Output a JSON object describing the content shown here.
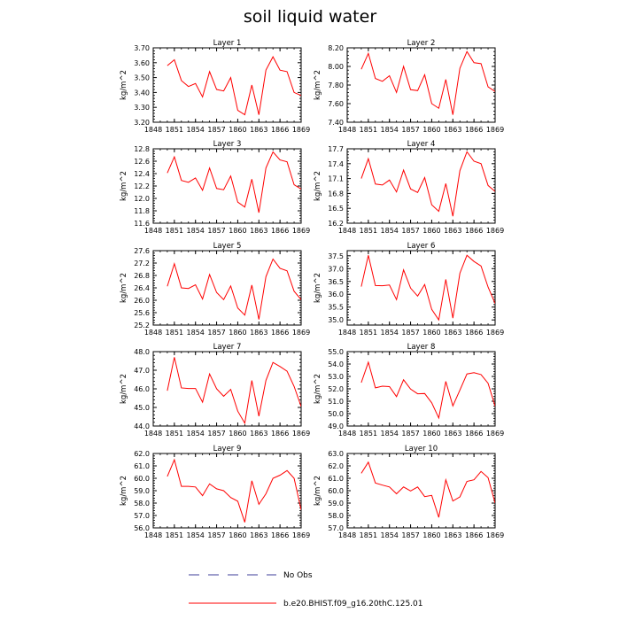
{
  "title": "soil liquid water",
  "legend": {
    "items": [
      {
        "label": "No Obs",
        "style": "dashed",
        "color": "#3d3d9a"
      },
      {
        "label": "b.e20.BHIST.f09_g16.20thC.125.01",
        "style": "solid",
        "color": "#ff0000"
      }
    ]
  },
  "chart_data": [
    {
      "type": "line",
      "title": "Layer 1",
      "ylabel": "kg/m^2",
      "xlim": [
        1848,
        1869
      ],
      "ylim": [
        3.2,
        3.7
      ],
      "xticks": [
        "1848",
        "1851",
        "1854",
        "1857",
        "1860",
        "1863",
        "1866",
        "1869"
      ],
      "yticks": [
        "3.20",
        "3.30",
        "3.40",
        "3.50",
        "3.60",
        "3.70"
      ],
      "series": [
        {
          "color": "#ff0000",
          "x": [
            1850,
            1851,
            1852,
            1853,
            1854,
            1855,
            1856,
            1857,
            1858,
            1859,
            1860,
            1861,
            1862,
            1863,
            1864,
            1865,
            1866,
            1867,
            1868,
            1869
          ],
          "y": [
            3.58,
            3.62,
            3.48,
            3.44,
            3.46,
            3.37,
            3.54,
            3.42,
            3.41,
            3.5,
            3.28,
            3.25,
            3.45,
            3.25,
            3.55,
            3.64,
            3.55,
            3.54,
            3.4,
            3.38
          ]
        }
      ]
    },
    {
      "type": "line",
      "title": "Layer 2",
      "ylabel": "kg/m^2",
      "xlim": [
        1848,
        1869
      ],
      "ylim": [
        7.4,
        8.2
      ],
      "xticks": [
        "1848",
        "1851",
        "1854",
        "1857",
        "1860",
        "1863",
        "1866",
        "1869"
      ],
      "yticks": [
        "7.40",
        "7.60",
        "7.80",
        "8.00",
        "8.20"
      ],
      "series": [
        {
          "color": "#ff0000",
          "x": [
            1850,
            1851,
            1852,
            1853,
            1854,
            1855,
            1856,
            1857,
            1858,
            1859,
            1860,
            1861,
            1862,
            1863,
            1864,
            1865,
            1866,
            1867,
            1868,
            1869
          ],
          "y": [
            7.97,
            8.14,
            7.87,
            7.84,
            7.9,
            7.72,
            8.0,
            7.75,
            7.74,
            7.91,
            7.6,
            7.55,
            7.86,
            7.48,
            7.98,
            8.16,
            8.04,
            8.03,
            7.78,
            7.73
          ]
        }
      ]
    },
    {
      "type": "line",
      "title": "Layer 3",
      "ylabel": "kg/m^2",
      "xlim": [
        1848,
        1869
      ],
      "ylim": [
        11.6,
        12.8
      ],
      "xticks": [
        "1848",
        "1851",
        "1854",
        "1857",
        "1860",
        "1863",
        "1866",
        "1869"
      ],
      "yticks": [
        "11.6",
        "11.8",
        "12.0",
        "12.2",
        "12.4",
        "12.6",
        "12.8"
      ],
      "series": [
        {
          "color": "#ff0000",
          "x": [
            1850,
            1851,
            1852,
            1853,
            1854,
            1855,
            1856,
            1857,
            1858,
            1859,
            1860,
            1861,
            1862,
            1863,
            1864,
            1865,
            1866,
            1867,
            1868,
            1869
          ],
          "y": [
            12.41,
            12.67,
            12.29,
            12.26,
            12.33,
            12.13,
            12.49,
            12.16,
            12.14,
            12.36,
            11.94,
            11.86,
            12.31,
            11.77,
            12.49,
            12.75,
            12.62,
            12.59,
            12.22,
            12.15
          ]
        }
      ]
    },
    {
      "type": "line",
      "title": "Layer 4",
      "ylabel": "kg/m^2",
      "xlim": [
        1848,
        1869
      ],
      "ylim": [
        16.2,
        17.7
      ],
      "xticks": [
        "1848",
        "1851",
        "1854",
        "1857",
        "1860",
        "1863",
        "1866",
        "1869"
      ],
      "yticks": [
        "16.2",
        "16.5",
        "16.8",
        "17.1",
        "17.4",
        "17.7"
      ],
      "series": [
        {
          "color": "#ff0000",
          "x": [
            1850,
            1851,
            1852,
            1853,
            1854,
            1855,
            1856,
            1857,
            1858,
            1859,
            1860,
            1861,
            1862,
            1863,
            1864,
            1865,
            1866,
            1867,
            1868,
            1869
          ],
          "y": [
            17.1,
            17.5,
            16.99,
            16.97,
            17.07,
            16.83,
            17.27,
            16.89,
            16.82,
            17.12,
            16.57,
            16.44,
            17.0,
            16.34,
            17.26,
            17.64,
            17.45,
            17.4,
            16.96,
            16.84
          ]
        }
      ]
    },
    {
      "type": "line",
      "title": "Layer 5",
      "ylabel": "kg/m^2",
      "xlim": [
        1848,
        1869
      ],
      "ylim": [
        25.2,
        27.6
      ],
      "xticks": [
        "1848",
        "1851",
        "1854",
        "1857",
        "1860",
        "1863",
        "1866",
        "1869"
      ],
      "yticks": [
        "25.2",
        "25.6",
        "26.0",
        "26.4",
        "26.8",
        "27.2",
        "27.6"
      ],
      "series": [
        {
          "color": "#ff0000",
          "x": [
            1850,
            1851,
            1852,
            1853,
            1854,
            1855,
            1856,
            1857,
            1858,
            1859,
            1860,
            1861,
            1862,
            1863,
            1864,
            1865,
            1866,
            1867,
            1868,
            1869
          ],
          "y": [
            26.45,
            27.18,
            26.4,
            26.38,
            26.5,
            26.04,
            26.83,
            26.25,
            26.02,
            26.46,
            25.75,
            25.52,
            26.49,
            25.38,
            26.76,
            27.33,
            27.03,
            26.95,
            26.29,
            26.02
          ]
        }
      ]
    },
    {
      "type": "line",
      "title": "Layer 6",
      "ylabel": "kg/m^2",
      "xlim": [
        1848,
        1869
      ],
      "ylim": [
        34.8,
        37.7
      ],
      "xticks": [
        "1848",
        "1851",
        "1854",
        "1857",
        "1860",
        "1863",
        "1866",
        "1869"
      ],
      "yticks": [
        "35.0",
        "35.5",
        "36.0",
        "36.5",
        "37.0",
        "37.5"
      ],
      "series": [
        {
          "color": "#ff0000",
          "x": [
            1850,
            1851,
            1852,
            1853,
            1854,
            1855,
            1856,
            1857,
            1858,
            1859,
            1860,
            1861,
            1862,
            1863,
            1864,
            1865,
            1866,
            1867,
            1868,
            1869
          ],
          "y": [
            36.3,
            37.52,
            36.34,
            36.33,
            36.36,
            35.79,
            36.95,
            36.24,
            35.93,
            36.38,
            35.41,
            35.0,
            36.58,
            35.07,
            36.82,
            37.52,
            37.28,
            37.1,
            36.28,
            35.64
          ]
        }
      ]
    },
    {
      "type": "line",
      "title": "Layer 7",
      "ylabel": "kg/m^2",
      "xlim": [
        1848,
        1869
      ],
      "ylim": [
        44.0,
        48.0
      ],
      "xticks": [
        "1848",
        "1851",
        "1854",
        "1857",
        "1860",
        "1863",
        "1866",
        "1869"
      ],
      "yticks": [
        "44.0",
        "45.0",
        "46.0",
        "47.0",
        "48.0"
      ],
      "series": [
        {
          "color": "#ff0000",
          "x": [
            1850,
            1851,
            1852,
            1853,
            1854,
            1855,
            1856,
            1857,
            1858,
            1859,
            1860,
            1861,
            1862,
            1863,
            1864,
            1865,
            1866,
            1867,
            1868,
            1869
          ],
          "y": [
            45.9,
            47.7,
            46.05,
            46.02,
            46.02,
            45.28,
            46.8,
            46.0,
            45.6,
            45.97,
            44.8,
            44.15,
            46.45,
            44.53,
            46.45,
            47.42,
            47.2,
            46.95,
            46.13,
            45.05
          ]
        }
      ]
    },
    {
      "type": "line",
      "title": "Layer 8",
      "ylabel": "kg/m^2",
      "xlim": [
        1848,
        1869
      ],
      "ylim": [
        49.0,
        55.0
      ],
      "xticks": [
        "1848",
        "1851",
        "1854",
        "1857",
        "1860",
        "1863",
        "1866",
        "1869"
      ],
      "yticks": [
        "49.0",
        "50.0",
        "51.0",
        "52.0",
        "53.0",
        "54.0",
        "55.0"
      ],
      "series": [
        {
          "color": "#ff0000",
          "x": [
            1850,
            1851,
            1852,
            1853,
            1854,
            1855,
            1856,
            1857,
            1858,
            1859,
            1860,
            1861,
            1862,
            1863,
            1864,
            1865,
            1866,
            1867,
            1868,
            1869
          ],
          "y": [
            52.5,
            54.15,
            52.08,
            52.21,
            52.18,
            51.37,
            52.73,
            51.98,
            51.6,
            51.62,
            50.87,
            49.65,
            52.6,
            50.62,
            51.9,
            53.2,
            53.3,
            53.15,
            52.45,
            50.6
          ]
        }
      ]
    },
    {
      "type": "line",
      "title": "Layer 9",
      "ylabel": "kg/m^2",
      "xlim": [
        1848,
        1869
      ],
      "ylim": [
        56.0,
        62.0
      ],
      "xticks": [
        "1848",
        "1851",
        "1854",
        "1857",
        "1860",
        "1863",
        "1866",
        "1869"
      ],
      "yticks": [
        "56.0",
        "57.0",
        "58.0",
        "59.0",
        "60.0",
        "61.0",
        "62.0"
      ],
      "series": [
        {
          "color": "#ff0000",
          "x": [
            1850,
            1851,
            1852,
            1853,
            1854,
            1855,
            1856,
            1857,
            1858,
            1859,
            1860,
            1861,
            1862,
            1863,
            1864,
            1865,
            1866,
            1867,
            1868,
            1869
          ],
          "y": [
            60.15,
            61.5,
            59.35,
            59.35,
            59.3,
            58.6,
            59.55,
            59.15,
            59.0,
            58.45,
            58.15,
            56.45,
            59.8,
            57.9,
            58.75,
            60.0,
            60.25,
            60.62,
            60.0,
            57.45
          ]
        }
      ]
    },
    {
      "type": "line",
      "title": "Layer 10",
      "ylabel": "kg/m^2",
      "xlim": [
        1848,
        1869
      ],
      "ylim": [
        57.0,
        63.0
      ],
      "xticks": [
        "1848",
        "1851",
        "1854",
        "1857",
        "1860",
        "1863",
        "1866",
        "1869"
      ],
      "yticks": [
        "57.0",
        "58.0",
        "59.0",
        "60.0",
        "61.0",
        "62.0",
        "63.0"
      ],
      "series": [
        {
          "color": "#ff0000",
          "x": [
            1850,
            1851,
            1852,
            1853,
            1854,
            1855,
            1856,
            1857,
            1858,
            1859,
            1860,
            1861,
            1862,
            1863,
            1864,
            1865,
            1866,
            1867,
            1868,
            1869
          ],
          "y": [
            61.4,
            62.3,
            60.62,
            60.45,
            60.3,
            59.75,
            60.3,
            59.98,
            60.3,
            59.52,
            59.62,
            57.85,
            60.88,
            59.17,
            59.5,
            60.75,
            60.88,
            61.55,
            61.05,
            59.0
          ]
        }
      ]
    }
  ]
}
